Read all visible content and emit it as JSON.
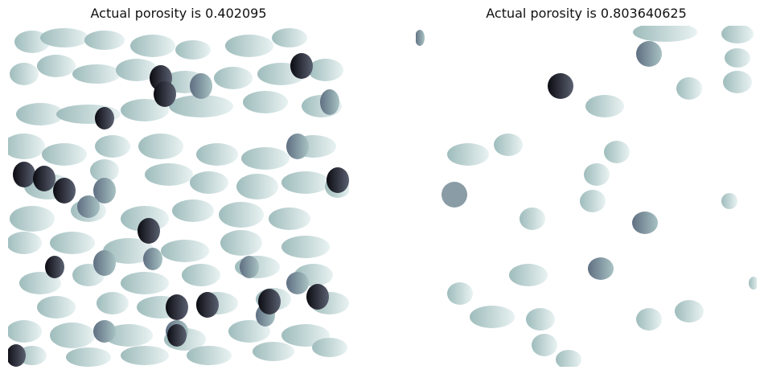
{
  "figure": {
    "panels": [
      {
        "title": "Actual porosity is 0.402095",
        "image_description": "porous medium sample rendered with grayscale-teal colormap (bone)"
      },
      {
        "title": "Actual porosity is 0.803640625",
        "image_description": "porous medium sample rendered with grayscale-teal colormap (bone)"
      }
    ]
  }
}
